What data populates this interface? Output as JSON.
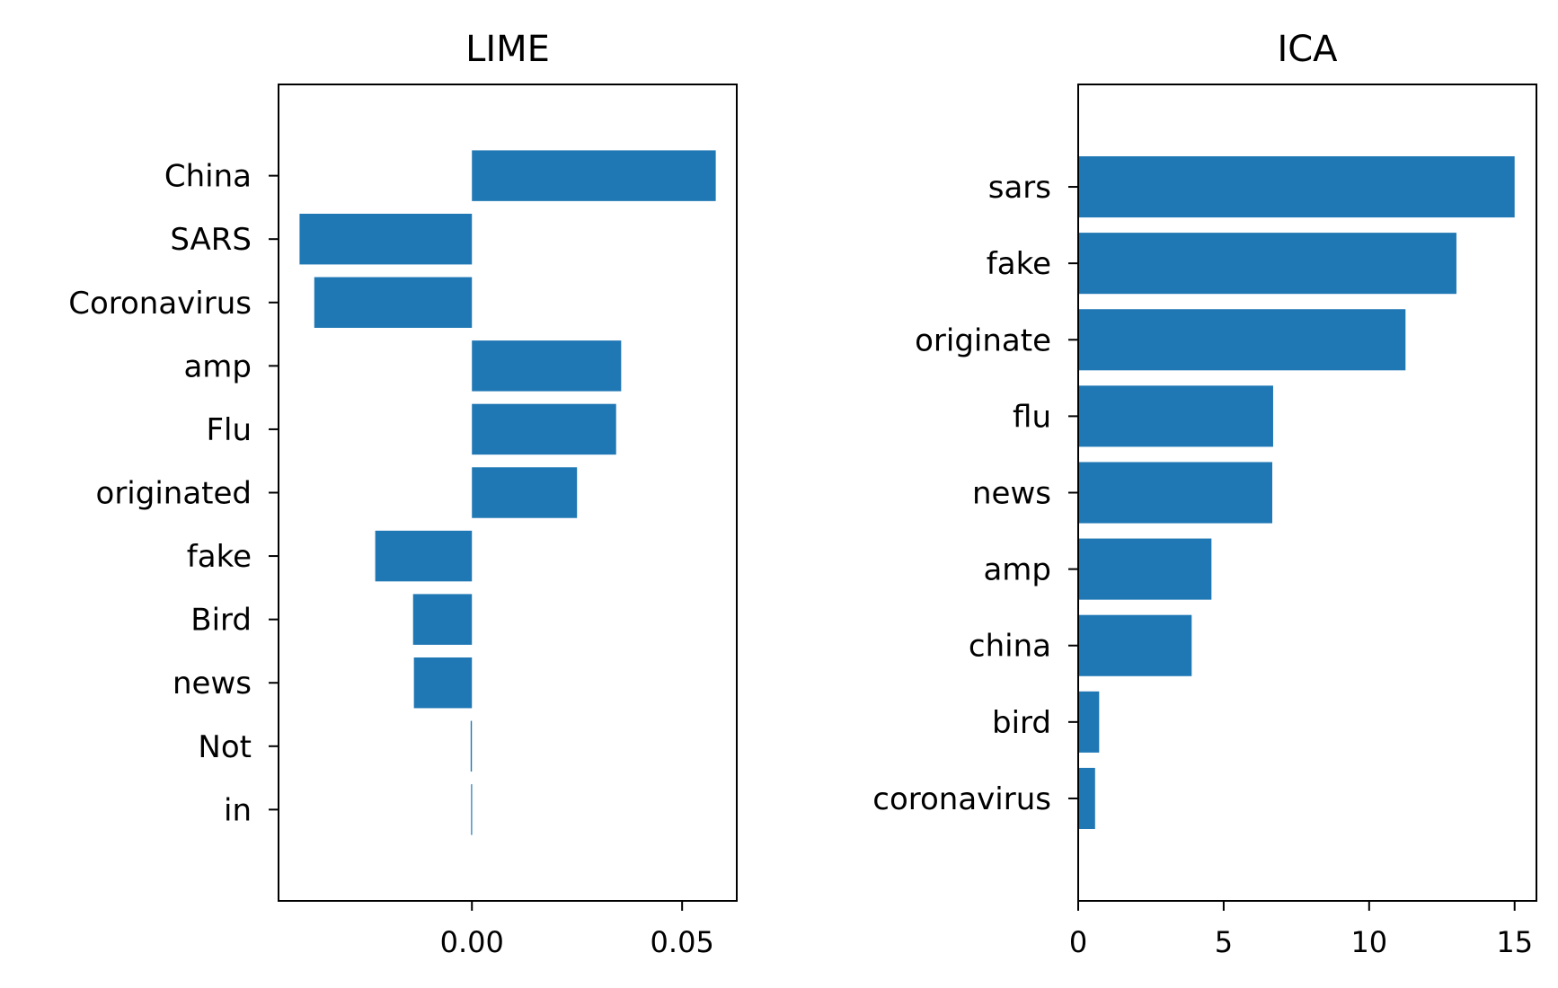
{
  "chart_data": [
    {
      "type": "bar",
      "orientation": "horizontal",
      "title": "LIME",
      "xlabel": "",
      "ylabel": "",
      "categories": [
        "China",
        "SARS",
        "Coronavirus",
        "amp",
        "Flu",
        "originated",
        "fake",
        "Bird",
        "news",
        "Not",
        "in"
      ],
      "values": [
        0.058,
        -0.041,
        -0.0375,
        0.0355,
        0.0343,
        0.025,
        -0.023,
        -0.014,
        -0.0138,
        -0.0003,
        -0.0002
      ],
      "xlim": [
        -0.046,
        0.063
      ],
      "xticks": [
        0.0,
        0.05
      ],
      "xtick_labels": [
        "0.00",
        "0.05"
      ],
      "color": "#1f77b4",
      "grid": false,
      "legend": "none"
    },
    {
      "type": "bar",
      "orientation": "horizontal",
      "title": "ICA",
      "xlabel": "",
      "ylabel": "",
      "categories": [
        "sars",
        "fake",
        "originate",
        "flu",
        "news",
        "amp",
        "china",
        "bird",
        "coronavirus"
      ],
      "values": [
        15.0,
        13.0,
        11.25,
        6.7,
        6.67,
        4.58,
        3.9,
        0.72,
        0.58
      ],
      "xlim": [
        0,
        15.75
      ],
      "xticks": [
        0,
        5,
        10,
        15
      ],
      "xtick_labels": [
        "0",
        "5",
        "10",
        "15"
      ],
      "color": "#1f77b4",
      "grid": false,
      "legend": "none"
    }
  ]
}
